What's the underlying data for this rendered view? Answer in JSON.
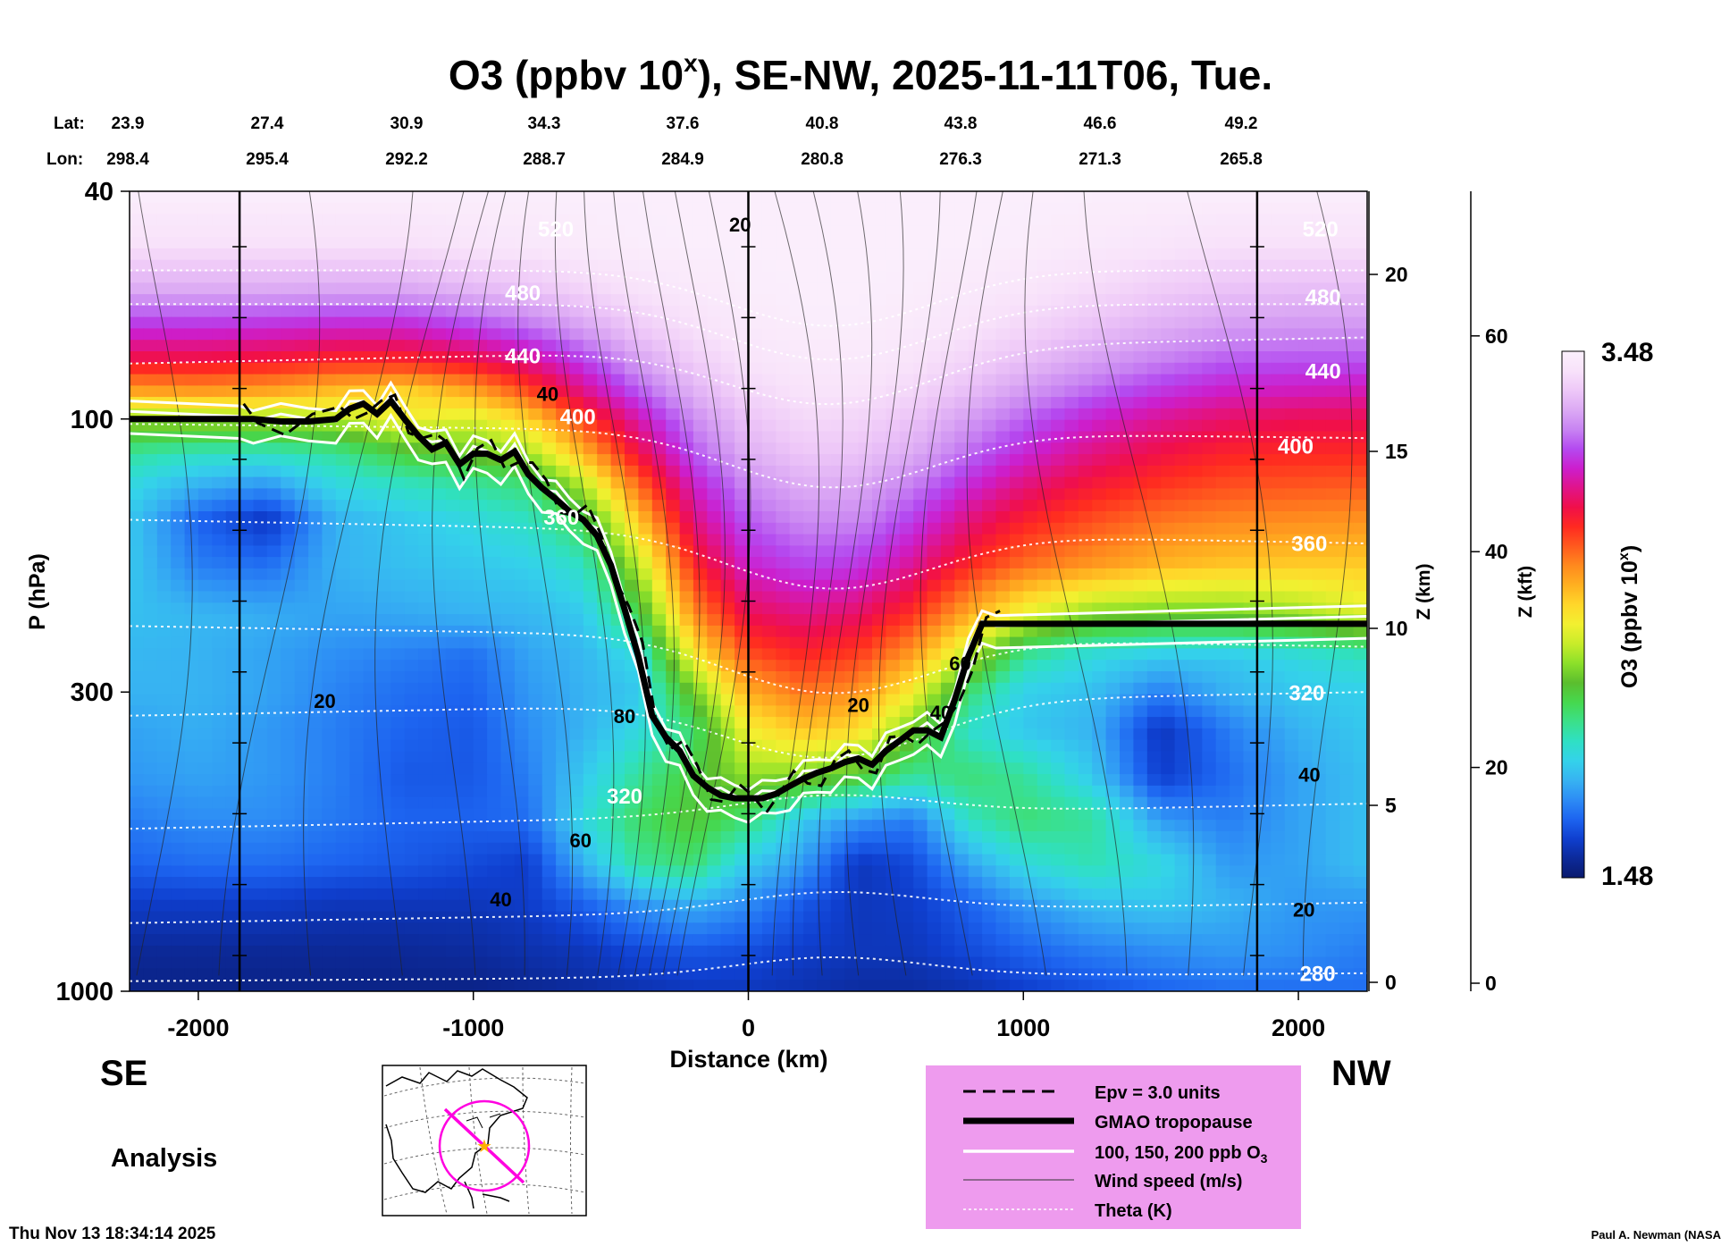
{
  "title": {
    "prefix": "O3 (ppbv 10",
    "sup": "x",
    "suffix": "), SE-NW, 2025-11-11T06, Tue."
  },
  "geo": {
    "lat_label": "Lat:",
    "lon_label": "Lon:",
    "lat": [
      "23.9",
      "27.4",
      "30.9",
      "34.3",
      "37.6",
      "40.8",
      "43.8",
      "46.6",
      "49.2"
    ],
    "lon": [
      "298.4",
      "295.4",
      "292.2",
      "288.7",
      "284.9",
      "280.8",
      "276.3",
      "271.3",
      "265.8"
    ]
  },
  "chart_data": {
    "type": "heatmap",
    "title": "O3 (ppbv 10^x), SE-NW, 2025-11-11T06, Tue.",
    "xlabel": "Distance (km)",
    "ylabel": "P (hPa)",
    "y2label": "Z (km)",
    "y3label": "Z (kft)",
    "xlim": [
      -2250,
      2250
    ],
    "ylim_hpa": [
      1000,
      40
    ],
    "y_scale": "log",
    "x_ticks": [
      "-2000",
      "-1000",
      "0",
      "1000",
      "2000"
    ],
    "x_tick_values": [
      -2000,
      -1000,
      0,
      1000,
      2000
    ],
    "y_ticks": [
      "40",
      "100",
      "300",
      "1000"
    ],
    "y_tick_values": [
      40,
      100,
      300,
      1000
    ],
    "z_km_ticks": [
      "0",
      "5",
      "10",
      "15",
      "20"
    ],
    "z_km_values": [
      0,
      5,
      10,
      15,
      20
    ],
    "z_kft_ticks": [
      "0",
      "20",
      "40",
      "60"
    ],
    "z_kft_values": [
      0,
      20,
      40,
      60
    ],
    "vertical_markers_km": [
      -1850,
      0,
      1850
    ],
    "colorbar": {
      "label": "O3 (ppbv 10",
      "label_sup": "x",
      "label_end": ")",
      "min": "1.48",
      "max": "3.48",
      "colors": [
        "#0a1a6e",
        "#0c2a9a",
        "#0f3fcf",
        "#1d64f0",
        "#2d8cf5",
        "#37b3f2",
        "#34d2ea",
        "#2fe0c4",
        "#3be08a",
        "#46d84e",
        "#5bbe2e",
        "#8ce02a",
        "#c8ec2a",
        "#f2f030",
        "#ffd72a",
        "#ffb020",
        "#ff8a1e",
        "#ff5a1e",
        "#ff2a20",
        "#f00f4a",
        "#e0148a",
        "#cc1ecd",
        "#b44af0",
        "#c884f2",
        "#dcaaf4",
        "#eec8f8",
        "#f8e2fa",
        "#fbf0fc"
      ]
    },
    "theta_labels": [
      {
        "text": "520",
        "x": -700,
        "p": 48
      },
      {
        "text": "480",
        "x": -820,
        "p": 62
      },
      {
        "text": "440",
        "x": -820,
        "p": 80
      },
      {
        "text": "400",
        "x": -620,
        "p": 102
      },
      {
        "text": "360",
        "x": -680,
        "p": 153
      },
      {
        "text": "320",
        "x": -450,
        "p": 470
      },
      {
        "text": "520",
        "x": 2080,
        "p": 48
      },
      {
        "text": "480",
        "x": 2090,
        "p": 63
      },
      {
        "text": "440",
        "x": 2090,
        "p": 85
      },
      {
        "text": "400",
        "x": 1990,
        "p": 115
      },
      {
        "text": "360",
        "x": 2040,
        "p": 170
      },
      {
        "text": "320",
        "x": 2030,
        "p": 310
      },
      {
        "text": "280",
        "x": 2070,
        "p": 960
      }
    ],
    "wind_labels": [
      {
        "text": "20",
        "x": -30,
        "p": 47
      },
      {
        "text": "40",
        "x": -730,
        "p": 93
      },
      {
        "text": "20",
        "x": -1540,
        "p": 320
      },
      {
        "text": "80",
        "x": -450,
        "p": 340
      },
      {
        "text": "60",
        "x": -610,
        "p": 560
      },
      {
        "text": "40",
        "x": -900,
        "p": 710
      },
      {
        "text": "20",
        "x": 400,
        "p": 325
      },
      {
        "text": "40",
        "x": 700,
        "p": 335
      },
      {
        "text": "60",
        "x": 770,
        "p": 275
      },
      {
        "text": "40",
        "x": 2040,
        "p": 430
      },
      {
        "text": "20",
        "x": 2020,
        "p": 740
      }
    ],
    "tropopause_km": [
      -2250,
      -1850,
      -1800,
      -1700,
      -1600,
      -1500,
      -1450,
      -1400,
      -1350,
      -1300,
      -1250,
      -1200,
      -1150,
      -1100,
      -1050,
      -1000,
      -950,
      -900,
      -850,
      -800,
      -750,
      -700,
      -650,
      -600,
      -550,
      -500,
      -450,
      -400,
      -350,
      -300,
      -250,
      -200,
      -150,
      -100,
      -50,
      0,
      50,
      100,
      150,
      200,
      250,
      300,
      350,
      400,
      450,
      500,
      550,
      600,
      650,
      700,
      750,
      800,
      850,
      900,
      2250
    ],
    "tropopause_hpa": [
      100,
      100,
      100,
      101,
      101,
      100,
      96,
      94,
      98,
      93,
      100,
      107,
      113,
      110,
      120,
      115,
      115,
      118,
      114,
      125,
      132,
      138,
      145,
      150,
      160,
      180,
      215,
      260,
      330,
      360,
      380,
      420,
      440,
      455,
      460,
      460,
      460,
      452,
      438,
      425,
      415,
      408,
      398,
      392,
      402,
      380,
      365,
      350,
      350,
      360,
      310,
      260,
      228,
      228,
      228
    ],
    "o3_rows_hpa": [
      40,
      50,
      60,
      70,
      80,
      90,
      100,
      115,
      130,
      150,
      180,
      220,
      260,
      300,
      350,
      420,
      500,
      600,
      700,
      850,
      1000
    ],
    "o3_cols_km": [
      -2250,
      -2000,
      -1750,
      -1500,
      -1250,
      -1000,
      -800,
      -600,
      -400,
      -200,
      0,
      200,
      400,
      600,
      800,
      1000,
      1250,
      1500,
      1750,
      2000,
      2250
    ],
    "o3_values": [
      [
        3.47,
        3.47,
        3.47,
        3.47,
        3.47,
        3.47,
        3.47,
        3.47,
        3.47,
        3.47,
        3.47,
        3.47,
        3.47,
        3.47,
        3.47,
        3.47,
        3.47,
        3.47,
        3.47,
        3.47,
        3.47
      ],
      [
        3.4,
        3.4,
        3.4,
        3.4,
        3.4,
        3.42,
        3.43,
        3.45,
        3.46,
        3.47,
        3.47,
        3.47,
        3.47,
        3.47,
        3.47,
        3.46,
        3.44,
        3.42,
        3.4,
        3.4,
        3.4
      ],
      [
        3.25,
        3.25,
        3.25,
        3.24,
        3.24,
        3.28,
        3.31,
        3.36,
        3.41,
        3.44,
        3.46,
        3.47,
        3.47,
        3.46,
        3.44,
        3.42,
        3.38,
        3.34,
        3.31,
        3.3,
        3.3
      ],
      [
        3.05,
        3.05,
        3.04,
        3.02,
        3.02,
        3.08,
        3.14,
        3.23,
        3.33,
        3.4,
        3.44,
        3.46,
        3.46,
        3.44,
        3.41,
        3.37,
        3.31,
        3.26,
        3.22,
        3.21,
        3.21
      ],
      [
        2.86,
        2.86,
        2.84,
        2.8,
        2.8,
        2.86,
        2.95,
        3.08,
        3.23,
        3.34,
        3.41,
        3.44,
        3.44,
        3.41,
        3.36,
        3.3,
        3.23,
        3.17,
        3.12,
        3.11,
        3.11
      ],
      [
        2.6,
        2.62,
        2.6,
        2.55,
        2.5,
        2.6,
        2.75,
        2.95,
        3.12,
        3.27,
        3.37,
        3.41,
        3.41,
        3.37,
        3.3,
        3.22,
        3.14,
        3.07,
        3.02,
        3.01,
        3.0
      ],
      [
        2.3,
        2.32,
        2.32,
        2.35,
        2.45,
        2.4,
        2.52,
        2.78,
        3.0,
        3.2,
        3.32,
        3.38,
        3.37,
        3.32,
        3.23,
        3.14,
        3.04,
        2.97,
        2.92,
        2.9,
        2.9
      ],
      [
        2.05,
        2.0,
        2.0,
        2.05,
        2.18,
        2.25,
        2.32,
        2.58,
        2.88,
        3.12,
        3.27,
        3.33,
        3.32,
        3.26,
        3.15,
        3.05,
        2.95,
        2.88,
        2.83,
        2.82,
        2.82
      ],
      [
        1.95,
        1.85,
        1.8,
        1.95,
        2.0,
        2.05,
        2.1,
        2.35,
        2.72,
        3.03,
        3.2,
        3.27,
        3.26,
        3.18,
        3.06,
        2.95,
        2.86,
        2.8,
        2.76,
        2.75,
        2.74
      ],
      [
        1.9,
        1.7,
        1.6,
        1.85,
        1.9,
        1.95,
        2.0,
        2.15,
        2.55,
        2.95,
        3.13,
        3.2,
        3.19,
        3.09,
        2.95,
        2.84,
        2.76,
        2.7,
        2.67,
        2.66,
        2.65
      ],
      [
        1.9,
        1.75,
        1.72,
        1.85,
        1.88,
        1.9,
        1.92,
        2.0,
        2.35,
        2.82,
        3.04,
        3.1,
        3.08,
        2.97,
        2.82,
        2.71,
        2.64,
        2.58,
        2.55,
        2.54,
        2.54
      ],
      [
        1.88,
        1.86,
        1.84,
        1.82,
        1.83,
        1.85,
        1.86,
        1.9,
        2.15,
        2.65,
        2.9,
        2.95,
        2.92,
        2.8,
        2.6,
        2.42,
        2.28,
        2.25,
        2.25,
        2.3,
        2.4
      ],
      [
        1.86,
        1.85,
        1.82,
        1.78,
        1.75,
        1.72,
        1.82,
        1.86,
        1.95,
        2.45,
        2.75,
        2.82,
        2.78,
        2.62,
        2.35,
        2.05,
        1.95,
        1.9,
        1.9,
        1.95,
        2.0
      ],
      [
        1.85,
        1.85,
        1.82,
        1.76,
        1.72,
        1.7,
        1.8,
        1.85,
        1.9,
        2.25,
        2.6,
        2.7,
        2.65,
        2.45,
        2.1,
        1.92,
        1.88,
        1.75,
        1.85,
        1.9,
        1.92
      ],
      [
        1.82,
        1.84,
        1.8,
        1.75,
        1.7,
        1.68,
        1.78,
        1.85,
        1.95,
        2.1,
        2.45,
        2.55,
        2.5,
        2.25,
        1.98,
        1.9,
        1.85,
        1.6,
        1.75,
        1.85,
        1.9
      ],
      [
        1.8,
        1.82,
        1.8,
        1.75,
        1.68,
        1.68,
        1.75,
        1.9,
        2.05,
        2.18,
        2.3,
        2.28,
        2.2,
        2.05,
        2.1,
        2.05,
        1.9,
        1.62,
        1.72,
        1.82,
        1.88
      ],
      [
        1.75,
        1.78,
        1.78,
        1.74,
        1.7,
        1.7,
        1.72,
        1.95,
        2.12,
        2.2,
        2.1,
        1.9,
        1.8,
        1.75,
        2.0,
        2.1,
        2.05,
        1.8,
        1.75,
        1.82,
        1.88
      ],
      [
        1.7,
        1.72,
        1.72,
        1.7,
        1.68,
        1.65,
        1.62,
        1.85,
        2.05,
        2.1,
        1.9,
        1.8,
        1.6,
        1.65,
        1.82,
        1.95,
        2.02,
        1.95,
        1.8,
        1.82,
        1.88
      ],
      [
        1.62,
        1.62,
        1.62,
        1.6,
        1.6,
        1.6,
        1.62,
        1.7,
        1.8,
        1.85,
        1.78,
        1.68,
        1.6,
        1.62,
        1.7,
        1.8,
        1.88,
        1.9,
        1.85,
        1.8,
        1.8
      ],
      [
        1.55,
        1.55,
        1.55,
        1.55,
        1.55,
        1.56,
        1.58,
        1.6,
        1.65,
        1.68,
        1.66,
        1.62,
        1.6,
        1.6,
        1.65,
        1.7,
        1.75,
        1.78,
        1.8,
        1.78,
        1.75
      ],
      [
        1.52,
        1.52,
        1.52,
        1.52,
        1.52,
        1.52,
        1.54,
        1.56,
        1.58,
        1.6,
        1.6,
        1.58,
        1.56,
        1.56,
        1.58,
        1.62,
        1.66,
        1.7,
        1.72,
        1.72,
        1.72
      ]
    ]
  },
  "left_labels": {
    "se": "SE",
    "nw": "NW",
    "analysis": "Analysis"
  },
  "legend": {
    "items": [
      "Epv = 3.0 units",
      "GMAO tropopause",
      "100, 150, 200 ppb O",
      "Wind speed (m/s)",
      "Theta (K)"
    ],
    "o3_sub": "3",
    "bg": "#ee9bee"
  },
  "footer": {
    "timestamp": "Thu Nov 13 18:34:14 2025",
    "credit": "Paul A. Newman (NASA"
  }
}
